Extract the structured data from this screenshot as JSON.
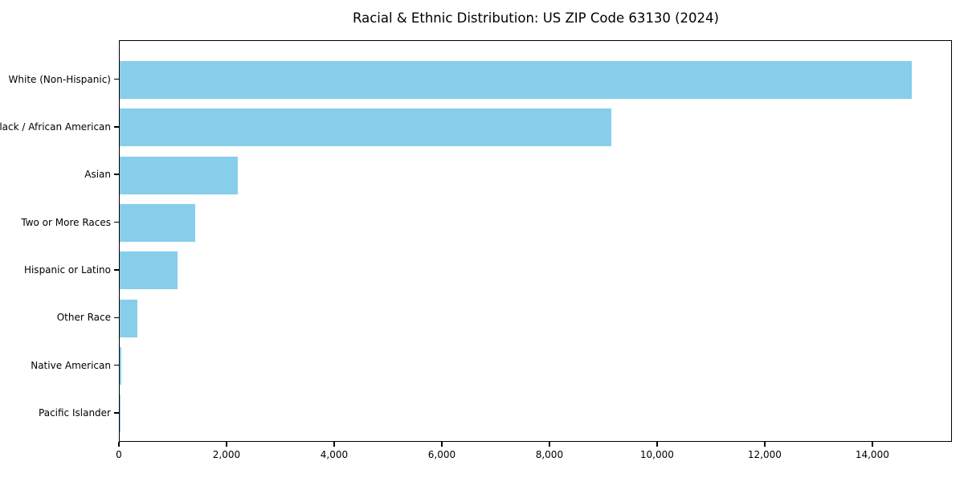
{
  "chart_data": {
    "type": "bar",
    "orientation": "horizontal",
    "title": "Racial & Ethnic Distribution: US ZIP Code 63130 (2024)",
    "categories": [
      "White (Non-Hispanic)",
      "Black / African American",
      "Asian",
      "Two or More Races",
      "Hispanic or Latino",
      "Other Race",
      "Native American",
      "Pacific Islander"
    ],
    "values": [
      14750,
      9160,
      2200,
      1400,
      1070,
      330,
      25,
      5
    ],
    "xlabel": "",
    "ylabel": "",
    "xlim": [
      0,
      15480
    ],
    "xticks": [
      0,
      2000,
      4000,
      6000,
      8000,
      10000,
      12000,
      14000
    ],
    "xtick_labels": [
      "0",
      "2,000",
      "4,000",
      "6,000",
      "8,000",
      "10,000",
      "12,000",
      "14,000"
    ],
    "grid": false,
    "legend": null,
    "bar_color": "#87CEEB",
    "axis_color": "#000000",
    "background_color": "#ffffff"
  }
}
